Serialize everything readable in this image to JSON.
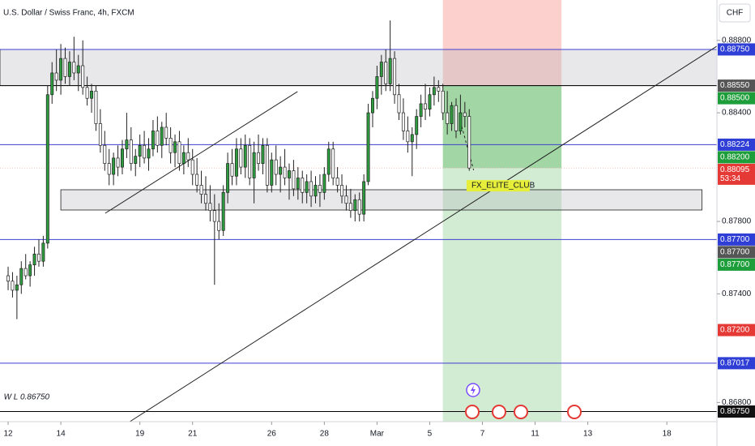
{
  "chart_data": {
    "type": "candlestick",
    "title": "U.S. Dollar / Swiss Franc, 4h, FXCM",
    "currency": "CHF",
    "up_color": "#2e9b3f",
    "down_color": "#ffffff",
    "xlim": [
      -1.85,
      161.4
    ],
    "ylim": [
      0.86694,
      0.89023
    ],
    "xticks": [
      {
        "value": 0,
        "label": "12"
      },
      {
        "value": 12,
        "label": "14"
      },
      {
        "value": 30,
        "label": "19"
      },
      {
        "value": 42,
        "label": "21"
      },
      {
        "value": 60,
        "label": "26"
      },
      {
        "value": 72,
        "label": "28"
      },
      {
        "value": 84,
        "label": "Mar"
      },
      {
        "value": 96,
        "label": "5"
      },
      {
        "value": 108,
        "label": "7"
      },
      {
        "value": 120,
        "label": "11"
      },
      {
        "value": 132,
        "label": "13"
      },
      {
        "value": 150,
        "label": "18"
      }
    ],
    "yticks": [
      {
        "value": 0.888,
        "label": "0.88800"
      },
      {
        "value": 0.884,
        "label": "0.88400"
      },
      {
        "value": 0.878,
        "label": "0.87800"
      },
      {
        "value": 0.874,
        "label": "0.87400"
      },
      {
        "value": 0.868,
        "label": "0.86800"
      }
    ],
    "candles": [
      [
        0.875,
        0.8755,
        0.8742,
        0.8747
      ],
      [
        0.8747,
        0.8752,
        0.8738,
        0.8742
      ],
      [
        0.8742,
        0.875,
        0.8726,
        0.8745
      ],
      [
        0.8745,
        0.8758,
        0.874,
        0.8754
      ],
      [
        0.8754,
        0.8762,
        0.8748,
        0.875
      ],
      [
        0.875,
        0.8758,
        0.8744,
        0.8756
      ],
      [
        0.8756,
        0.8766,
        0.875,
        0.8762
      ],
      [
        0.8762,
        0.877,
        0.8755,
        0.8758
      ],
      [
        0.8758,
        0.8772,
        0.8755,
        0.8768
      ],
      [
        0.8768,
        0.8855,
        0.8765,
        0.885
      ],
      [
        0.885,
        0.8868,
        0.8845,
        0.8862
      ],
      [
        0.8862,
        0.8875,
        0.8852,
        0.8858
      ],
      [
        0.8858,
        0.8878,
        0.885,
        0.887
      ],
      [
        0.887,
        0.8876,
        0.8856,
        0.886
      ],
      [
        0.886,
        0.8874,
        0.8855,
        0.8868
      ],
      [
        0.8868,
        0.8882,
        0.8858,
        0.8862
      ],
      [
        0.8862,
        0.8872,
        0.8852,
        0.8866
      ],
      [
        0.8866,
        0.888,
        0.885,
        0.8854
      ],
      [
        0.8854,
        0.886,
        0.8844,
        0.8848
      ],
      [
        0.8848,
        0.8856,
        0.884,
        0.8852
      ],
      [
        0.8852,
        0.8855,
        0.883,
        0.8834
      ],
      [
        0.8834,
        0.8842,
        0.8818,
        0.8822
      ],
      [
        0.8822,
        0.883,
        0.8808,
        0.8812
      ],
      [
        0.8812,
        0.882,
        0.88,
        0.8806
      ],
      [
        0.8806,
        0.8818,
        0.88,
        0.8815
      ],
      [
        0.8815,
        0.8822,
        0.8805,
        0.881
      ],
      [
        0.881,
        0.8825,
        0.8806,
        0.882
      ],
      [
        0.882,
        0.884,
        0.8815,
        0.8825
      ],
      [
        0.8825,
        0.8832,
        0.8808,
        0.8812
      ],
      [
        0.8812,
        0.882,
        0.8805,
        0.8816
      ],
      [
        0.8816,
        0.8828,
        0.881,
        0.8822
      ],
      [
        0.8822,
        0.883,
        0.8812,
        0.8815
      ],
      [
        0.8815,
        0.8826,
        0.8808,
        0.882
      ],
      [
        0.882,
        0.8836,
        0.8816,
        0.883
      ],
      [
        0.883,
        0.8838,
        0.8818,
        0.8822
      ],
      [
        0.8822,
        0.8835,
        0.8815,
        0.8832
      ],
      [
        0.8832,
        0.884,
        0.8822,
        0.8826
      ],
      [
        0.8826,
        0.8832,
        0.8812,
        0.8818
      ],
      [
        0.8818,
        0.8828,
        0.881,
        0.8824
      ],
      [
        0.8824,
        0.883,
        0.8808,
        0.8812
      ],
      [
        0.8812,
        0.8822,
        0.8806,
        0.8818
      ],
      [
        0.8818,
        0.8826,
        0.881,
        0.8814
      ],
      [
        0.8814,
        0.882,
        0.88,
        0.8806
      ],
      [
        0.8806,
        0.8815,
        0.8796,
        0.88
      ],
      [
        0.88,
        0.8808,
        0.879,
        0.8795
      ],
      [
        0.8795,
        0.8805,
        0.8786,
        0.879
      ],
      [
        0.879,
        0.88,
        0.878,
        0.8786
      ],
      [
        0.8786,
        0.8795,
        0.8745,
        0.878
      ],
      [
        0.878,
        0.879,
        0.877,
        0.8775
      ],
      [
        0.8775,
        0.88,
        0.8772,
        0.8796
      ],
      [
        0.8796,
        0.8818,
        0.879,
        0.8812
      ],
      [
        0.8812,
        0.882,
        0.88,
        0.8805
      ],
      [
        0.8805,
        0.8826,
        0.88,
        0.882
      ],
      [
        0.882,
        0.8826,
        0.8806,
        0.881
      ],
      [
        0.881,
        0.8828,
        0.8804,
        0.8822
      ],
      [
        0.8822,
        0.8826,
        0.88,
        0.8804
      ],
      [
        0.8804,
        0.8824,
        0.879,
        0.8818
      ],
      [
        0.8818,
        0.8828,
        0.8808,
        0.8812
      ],
      [
        0.8812,
        0.8826,
        0.8806,
        0.8822
      ],
      [
        0.8822,
        0.8826,
        0.8796,
        0.88
      ],
      [
        0.88,
        0.8818,
        0.8796,
        0.8814
      ],
      [
        0.8814,
        0.8822,
        0.88,
        0.8806
      ],
      [
        0.8806,
        0.8816,
        0.8796,
        0.881
      ],
      [
        0.881,
        0.882,
        0.88,
        0.8804
      ],
      [
        0.8804,
        0.8812,
        0.8792,
        0.8808
      ],
      [
        0.8808,
        0.8814,
        0.8794,
        0.8798
      ],
      [
        0.8798,
        0.881,
        0.8792,
        0.8804
      ],
      [
        0.8804,
        0.8808,
        0.879,
        0.8796
      ],
      [
        0.8796,
        0.8806,
        0.879,
        0.8802
      ],
      [
        0.8802,
        0.8808,
        0.8788,
        0.8794
      ],
      [
        0.8794,
        0.8805,
        0.879,
        0.88
      ],
      [
        0.88,
        0.8806,
        0.8788,
        0.8796
      ],
      [
        0.8796,
        0.881,
        0.8792,
        0.8806
      ],
      [
        0.8806,
        0.8824,
        0.8802,
        0.882
      ],
      [
        0.882,
        0.8824,
        0.88,
        0.8804
      ],
      [
        0.8804,
        0.881,
        0.8796,
        0.88
      ],
      [
        0.88,
        0.8806,
        0.879,
        0.8794
      ],
      [
        0.8794,
        0.88,
        0.8786,
        0.879
      ],
      [
        0.879,
        0.8798,
        0.8782,
        0.8786
      ],
      [
        0.8786,
        0.8795,
        0.878,
        0.8792
      ],
      [
        0.8792,
        0.8796,
        0.878,
        0.8784
      ],
      [
        0.8784,
        0.8806,
        0.878,
        0.8802
      ],
      [
        0.8802,
        0.8845,
        0.88,
        0.884
      ],
      [
        0.884,
        0.8852,
        0.8832,
        0.8848
      ],
      [
        0.8848,
        0.8866,
        0.8842,
        0.886
      ],
      [
        0.886,
        0.8872,
        0.885,
        0.8868
      ],
      [
        0.8868,
        0.8875,
        0.8852,
        0.8856
      ],
      [
        0.8856,
        0.8891,
        0.8852,
        0.887
      ],
      [
        0.887,
        0.8874,
        0.8845,
        0.885
      ],
      [
        0.885,
        0.8856,
        0.8836,
        0.884
      ],
      [
        0.884,
        0.8848,
        0.8825,
        0.883
      ],
      [
        0.883,
        0.8838,
        0.8818,
        0.8824
      ],
      [
        0.8824,
        0.8832,
        0.8805,
        0.8828
      ],
      [
        0.8828,
        0.8842,
        0.882,
        0.8838
      ],
      [
        0.8838,
        0.885,
        0.8832,
        0.8845
      ],
      [
        0.8845,
        0.8856,
        0.8836,
        0.8842
      ],
      [
        0.8842,
        0.8854,
        0.8838,
        0.885
      ],
      [
        0.885,
        0.886,
        0.8844,
        0.8854
      ],
      [
        0.8854,
        0.8858,
        0.8846,
        0.8852
      ],
      [
        0.8852,
        0.8856,
        0.8836,
        0.884
      ],
      [
        0.884,
        0.8852,
        0.8828,
        0.8834
      ],
      [
        0.8834,
        0.8846,
        0.883,
        0.8844
      ],
      [
        0.8844,
        0.8848,
        0.8826,
        0.883
      ],
      [
        0.883,
        0.885,
        0.8828,
        0.884
      ],
      [
        0.884,
        0.8846,
        0.8832,
        0.8838
      ],
      [
        0.8838,
        0.8842,
        0.8808,
        0.88095
      ]
    ],
    "hlines": [
      {
        "value": 0.8875,
        "color": "#3f3fd0"
      },
      {
        "value": 0.8855,
        "color": "#000000"
      },
      {
        "value": 0.88224,
        "color": "#3f3fd0"
      },
      {
        "value": 0.877,
        "color": "#3f3fd0"
      },
      {
        "value": 0.87017,
        "color": "#3f3fd0"
      },
      {
        "value": 0.8675,
        "color": "#000000"
      }
    ],
    "zones": [
      {
        "x": [
          -1.85,
          161.4
        ],
        "y": [
          0.8855,
          0.8875
        ]
      },
      {
        "x": [
          12,
          158
        ],
        "y": [
          0.87863,
          0.87975
        ]
      }
    ],
    "position": {
      "x": [
        99,
        126
      ],
      "entry": 0.8855,
      "stop": 0.8903,
      "target": 0.8669,
      "current": 0.88095
    },
    "trendlines": [
      {
        "x": [
          22.1,
          65.9
        ],
        "y": [
          0.87845,
          0.88517
        ],
        "dashed": false
      },
      {
        "x": [
          27.7,
          161.4
        ],
        "y": [
          0.86694,
          0.88768
        ],
        "dashed": false
      },
      {
        "x": [
          103,
          106
        ],
        "y": [
          0.88351,
          0.88083
        ],
        "dashed": true
      }
    ],
    "price_labels": [
      {
        "value": 0.8875,
        "label": "0.88750",
        "color": "#2f3fd6"
      },
      {
        "value": 0.8855,
        "label": "0.88550",
        "color": "#555555"
      },
      {
        "value": 0.885,
        "label": "0.88500",
        "color": "#1e9e3a"
      },
      {
        "value": 0.88224,
        "label": "0.88224",
        "color": "#2f3fd6"
      },
      {
        "value": 0.882,
        "label": "0.88200",
        "color": "#1e9e3a"
      },
      {
        "value": 0.88095,
        "label": "0.88095",
        "sub": "53:34",
        "color": "#e53935"
      },
      {
        "value": 0.877,
        "label": "0.87700",
        "color": "#2f3fd6"
      },
      {
        "value": 0.877,
        "label": "0.87700",
        "color": "#555555"
      },
      {
        "value": 0.877,
        "label": "0.87700",
        "color": "#1e9e3a"
      },
      {
        "value": 0.872,
        "label": "0.87200",
        "color": "#e53935"
      },
      {
        "value": 0.87017,
        "label": "0.87017",
        "color": "#2f3fd6"
      },
      {
        "value": 0.8675,
        "label": "0.86750",
        "color": "#111111"
      }
    ],
    "annotations": [
      {
        "text": "W L 0.86750",
        "x": -1,
        "y": 0.8683
      },
      {
        "text": "FX_ELITE_CLUB",
        "x": 105.5,
        "y": 0.87997
      }
    ]
  }
}
